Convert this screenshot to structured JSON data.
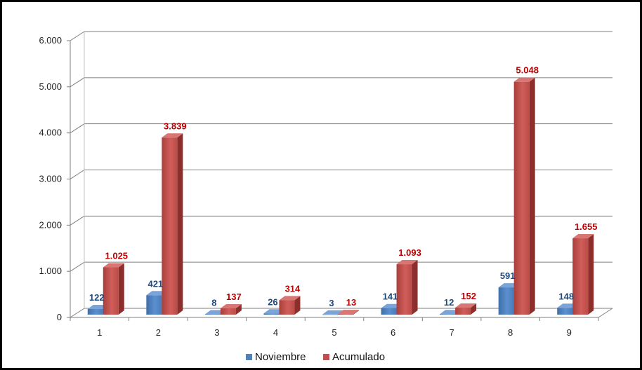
{
  "chart_data": {
    "type": "bar",
    "categories": [
      "1",
      "2",
      "3",
      "4",
      "5",
      "6",
      "7",
      "8",
      "9"
    ],
    "series": [
      {
        "name": "Noviembre",
        "values": [
          122,
          421,
          8,
          26,
          3,
          141,
          12,
          591,
          148
        ],
        "labels": [
          "122",
          "421",
          "8",
          "26",
          "3",
          "141",
          "12",
          "591",
          "148"
        ]
      },
      {
        "name": "Acumulado",
        "values": [
          1025,
          3839,
          137,
          314,
          13,
          1093,
          152,
          5048,
          1655
        ],
        "labels": [
          "1.025",
          "3.839",
          "137",
          "314",
          "13",
          "1.093",
          "152",
          "5.048",
          "1.655"
        ]
      }
    ],
    "ylim": [
      0,
      6000
    ],
    "yticks": [
      0,
      1000,
      2000,
      3000,
      4000,
      5000,
      6000
    ],
    "ytick_labels": [
      "0",
      "1.000",
      "2.000",
      "3.000",
      "4.000",
      "5.000",
      "6.000"
    ],
    "grid": true,
    "legend_position": "bottom",
    "colors": {
      "Noviembre": "#4F81BD",
      "Acumulado": "#C0504D",
      "label_a": "#1F497D",
      "label_b": "#C00000"
    }
  }
}
